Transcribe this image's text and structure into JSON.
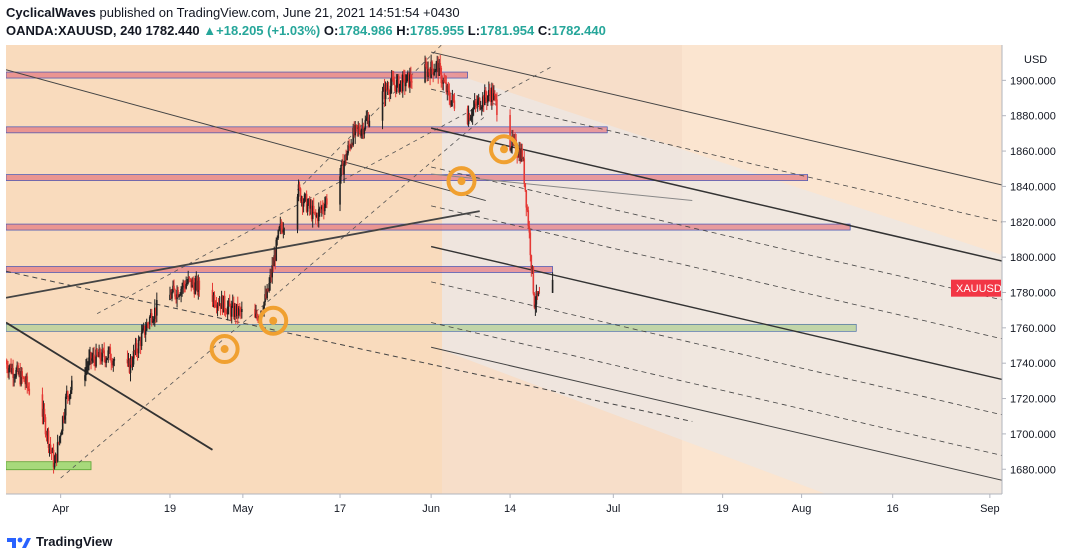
{
  "header": {
    "publisher": "CyclicalWaves",
    "published_text": "published on TradingView.com, June 21, 2021 14:51:54 +0430",
    "symbol": "OANDA:XAUUSD, 240",
    "last": "1782.440",
    "change": "+18.205 (+1.03%)",
    "o_label": "O:",
    "o": "1784.986",
    "h_label": "H:",
    "h": "1785.955",
    "l_label": "L:",
    "l": "1781.954",
    "c_label": "C:",
    "c": "1782.440"
  },
  "price_tag": {
    "label": "XAUUSD",
    "value": 1782.44,
    "color": "#f23645"
  },
  "currency": "USD",
  "footer": {
    "brand": "TradingView"
  },
  "chart_data": {
    "type": "candlestick",
    "ylim": [
      1666,
      1920
    ],
    "y_ticks": [
      "1900.000",
      "1880.000",
      "1860.000",
      "1840.000",
      "1820.000",
      "1800.000",
      "1780.000",
      "1760.000",
      "1740.000",
      "1720.000",
      "1700.000",
      "1680.000"
    ],
    "y_tick_values": [
      1900,
      1880,
      1860,
      1840,
      1820,
      1800,
      1780,
      1760,
      1740,
      1720,
      1700,
      1680
    ],
    "x_range": [
      "2021-03-23",
      "2021-09-03"
    ],
    "x_ticks": [
      {
        "label": "Apr",
        "date": "2021-04-01"
      },
      {
        "label": "19",
        "date": "2021-04-19"
      },
      {
        "label": "May",
        "date": "2021-05-01"
      },
      {
        "label": "17",
        "date": "2021-05-17"
      },
      {
        "label": "Jun",
        "date": "2021-06-01"
      },
      {
        "label": "14",
        "date": "2021-06-14"
      },
      {
        "label": "Jul",
        "date": "2021-07-01"
      },
      {
        "label": "19",
        "date": "2021-07-19"
      },
      {
        "label": "Aug",
        "date": "2021-08-01"
      },
      {
        "label": "16",
        "date": "2021-08-16"
      },
      {
        "label": "Sep",
        "date": "2021-09-01"
      }
    ],
    "price_path": [
      [
        "2021-03-23",
        1740
      ],
      [
        "2021-03-26",
        1730
      ],
      [
        "2021-03-29",
        1712
      ],
      [
        "2021-03-31",
        1682
      ],
      [
        "2021-04-02",
        1722
      ],
      [
        "2021-04-06",
        1742
      ],
      [
        "2021-04-09",
        1745
      ],
      [
        "2021-04-12",
        1736
      ],
      [
        "2021-04-16",
        1768
      ],
      [
        "2021-04-19",
        1778
      ],
      [
        "2021-04-22",
        1786
      ],
      [
        "2021-04-26",
        1778
      ],
      [
        "2021-04-29",
        1770
      ],
      [
        "2021-05-01",
        1768
      ],
      [
        "2021-05-03",
        1764
      ],
      [
        "2021-05-05",
        1778
      ],
      [
        "2021-05-07",
        1814
      ],
      [
        "2021-05-10",
        1838
      ],
      [
        "2021-05-13",
        1822
      ],
      [
        "2021-05-17",
        1846
      ],
      [
        "2021-05-19",
        1868
      ],
      [
        "2021-05-21",
        1875
      ],
      [
        "2021-05-25",
        1897
      ],
      [
        "2021-05-27",
        1898
      ],
      [
        "2021-05-31",
        1905
      ],
      [
        "2021-06-02",
        1908
      ],
      [
        "2021-06-04",
        1890
      ],
      [
        "2021-06-07",
        1880
      ],
      [
        "2021-06-09",
        1888
      ],
      [
        "2021-06-11",
        1893
      ],
      [
        "2021-06-14",
        1865
      ],
      [
        "2021-06-16",
        1858
      ],
      [
        "2021-06-17",
        1820
      ],
      [
        "2021-06-18",
        1775
      ],
      [
        "2021-06-21",
        1782.44
      ]
    ],
    "resistance_zones": [
      1903,
      1872,
      1845,
      1817,
      1793
    ],
    "support_zone": 1760,
    "low_zone": 1682
  }
}
